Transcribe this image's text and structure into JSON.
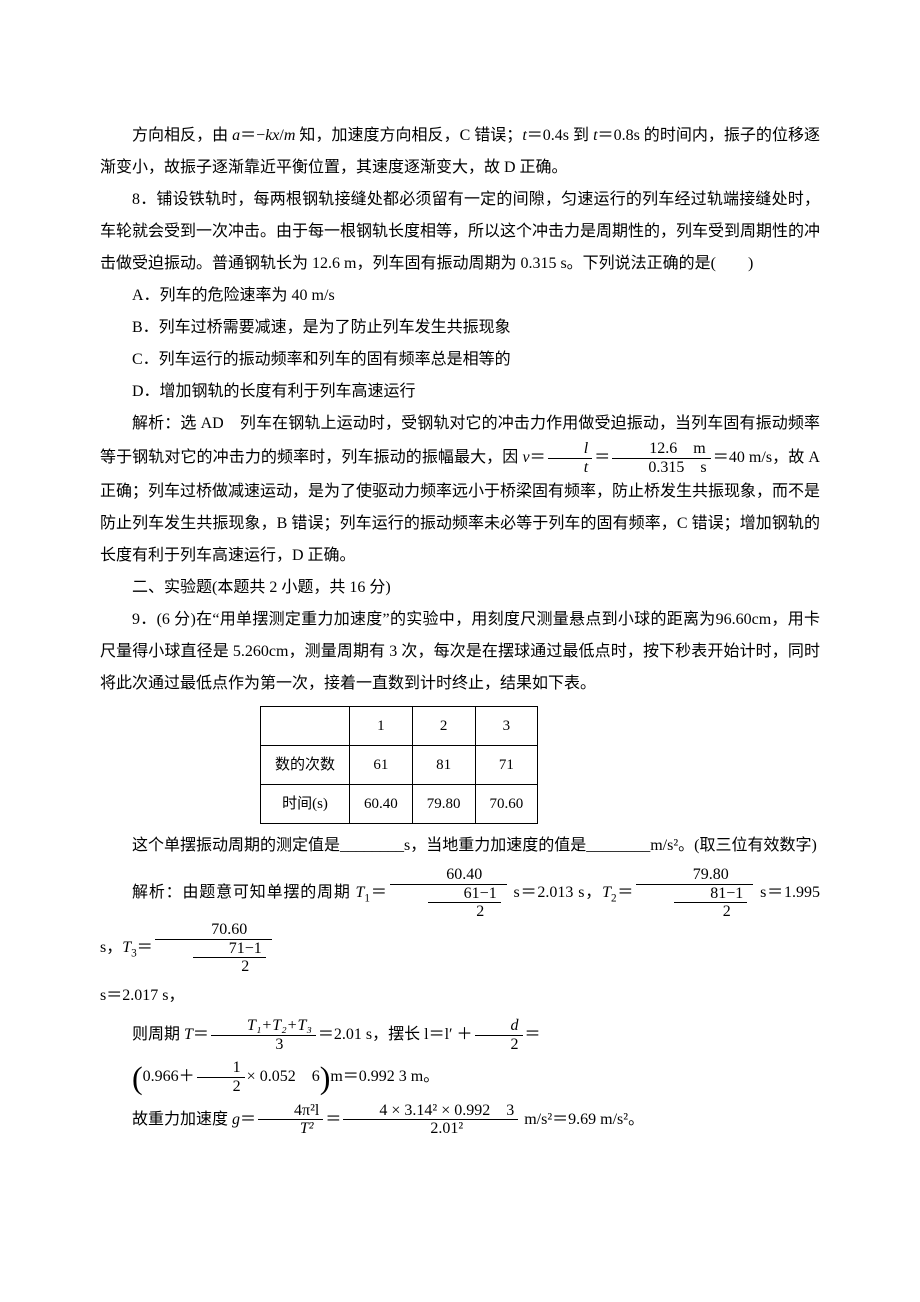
{
  "p1": "方向相反，由 a＝−kx/m 知，加速度方向相反，C 错误；t＝0.4s 到 t＝0.8s 的时间内，振子的位移逐渐变小，故振子逐渐靠近平衡位置，其速度逐渐变大，故 D 正确。",
  "q8": {
    "stem1": "8．铺设铁轨时，每两根钢轨接缝处都必须留有一定的间隙，匀速运行的列车经过轨端接缝处时，车轮就会受到一次冲击。由于每一根钢轨长度相等，所以这个冲击力是周期性的，列车受到周期性的冲击做受迫振动。普通钢轨长为 12.6 m，列车固有振动周期为 0.315 s。下列说法正确的是(　　)",
    "optA": "A．列车的危险速率为 40 m/s",
    "optB": "B．列车过桥需要减速，是为了防止列车发生共振现象",
    "optC": "C．列车运行的振动频率和列车的固有频率总是相等的",
    "optD": "D．增加钢轨的长度有利于列车高速运行",
    "ans_lead": "解析：选 AD　列车在钢轨上运动时，受钢轨对它的冲击力作用做受迫振动，当列车固有振动频率等于钢轨对它的冲击力的频率时，列车振动的振幅最大，因 ",
    "frac1_num": "l",
    "frac1_den": "t",
    "frac2_num": "12.6　m",
    "frac2_den": "0.315　s",
    "eq_tail": "＝40",
    "ans_tail": "m/s，故 A 正确；列车过桥做减速运动，是为了使驱动力频率远小于桥梁固有频率，防止桥发生共振现象，而不是防止列车发生共振现象，B 错误；列车运行的振动频率未必等于列车的固有频率，C 错误；增加钢轨的长度有利于列车高速运行，D 正确。"
  },
  "sec2": "二、实验题(本题共 2 小题，共 16 分)",
  "q9": {
    "stem": "9．(6 分)在“用单摆测定重力加速度”的实验中，用刻度尺测量悬点到小球的距离为96.60cm，用卡尺量得小球直径是 5.260cm，测量周期有 3 次，每次是在摆球通过最低点时，按下秒表开始计时，同时将此次通过最低点作为第一次，接着一直数到计时终止，结果如下表。",
    "table": {
      "header": [
        "",
        "1",
        "2",
        "3"
      ],
      "rows": [
        [
          "数的次数",
          "61",
          "81",
          "71"
        ],
        [
          "时间(s)",
          "60.40",
          "79.80",
          "70.60"
        ]
      ],
      "col_widths": [
        "90px",
        "70px",
        "70px",
        "70px"
      ]
    },
    "blank_line": "这个单摆振动周期的测定值是________s，当地重力加速度的值是________m/s²。(取三位有效数字)",
    "sol_lead": "解析：由题意可知单摆的周期 ",
    "T1_num": "60.40",
    "T1_den_top": "61−1",
    "T1_den_bot": "2",
    "T1_val": " s＝2.013 s，",
    "T2_num": "79.80",
    "T2_den_top": "81−1",
    "T2_den_bot": "2",
    "T2_val": " s＝1.995 s，",
    "T3_num": "70.60",
    "T3_den_top": "71−1",
    "T3_den_bot": "2",
    "s_tail": "s＝2.017 s，",
    "Tavg_lead": "则周期 ",
    "Tavg_num": "T₁+T₂+T₃",
    "Tavg_den": "3",
    "Tavg_val": "＝2.01 s，摆长 l＝l′ ＋",
    "d_num": "d",
    "d_den": "2",
    "d_tail": "＝",
    "paren_inner_a": "0.966＋",
    "paren_frac_num": "1",
    "paren_frac_den": "2",
    "paren_inner_b": "× 0.052　6",
    "paren_tail": "m＝0.992 3 m。",
    "g_lead": "故重力加速度 ",
    "g_frac1_num": "4π²l",
    "g_frac1_den": "T²",
    "g_frac2_num": "4 × 3.14² × 0.992　3",
    "g_frac2_den": "2.01²",
    "g_tail": " m/s²＝9.69 m/s²。"
  },
  "colors": {
    "text": "#000000",
    "bg": "#ffffff",
    "border": "#000000"
  }
}
